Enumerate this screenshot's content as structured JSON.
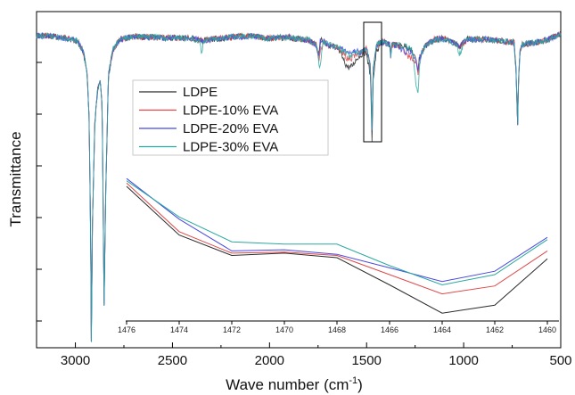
{
  "chart_data": {
    "type": "line",
    "title": "",
    "xlabel": "Wave number (cm",
    "xlabel_sup": "-1",
    "xlabel_close": ")",
    "ylabel": "Transmittance",
    "xlim": [
      3200,
      500
    ],
    "x_ticks": [
      3000,
      2500,
      2000,
      1500,
      1000,
      500
    ],
    "x_tick_labels": [
      "3000",
      "2500",
      "2000",
      "1500",
      "1000",
      "500"
    ],
    "legend_position": "center-left",
    "grid": false,
    "series": [
      {
        "name": "LDPE",
        "color": "#2b2b2b"
      },
      {
        "name": "LDPE-10% EVA",
        "color": "#e04848"
      },
      {
        "name": "LDPE-20% EVA",
        "color": "#4848e0"
      },
      {
        "name": "LDPE-30% EVA",
        "color": "#2aa8a0"
      }
    ],
    "inset": {
      "xlim": [
        1476,
        1460
      ],
      "x_tick_labels": [
        "1476",
        "1474",
        "1472",
        "1470",
        "1468",
        "1466",
        "1464",
        "1462",
        "1460"
      ],
      "x": [
        1476,
        1474,
        1472,
        1470,
        1468,
        1466,
        1464,
        1462,
        1460
      ],
      "series": [
        {
          "name": "LDPE",
          "values": [
            0.15,
            0.58,
            0.76,
            0.74,
            0.78,
            1.02,
            1.27,
            1.2,
            0.79
          ]
        },
        {
          "name": "LDPE-10% EVA",
          "values": [
            0.12,
            0.55,
            0.74,
            0.73,
            0.76,
            0.93,
            1.1,
            1.03,
            0.72
          ]
        },
        {
          "name": "LDPE-20% EVA",
          "values": [
            0.08,
            0.44,
            0.72,
            0.71,
            0.75,
            0.87,
            0.99,
            0.9,
            0.6
          ]
        },
        {
          "name": "LDPE-30% EVA",
          "values": [
            0.1,
            0.42,
            0.64,
            0.66,
            0.66,
            0.85,
            1.02,
            0.93,
            0.62
          ]
        }
      ]
    }
  }
}
